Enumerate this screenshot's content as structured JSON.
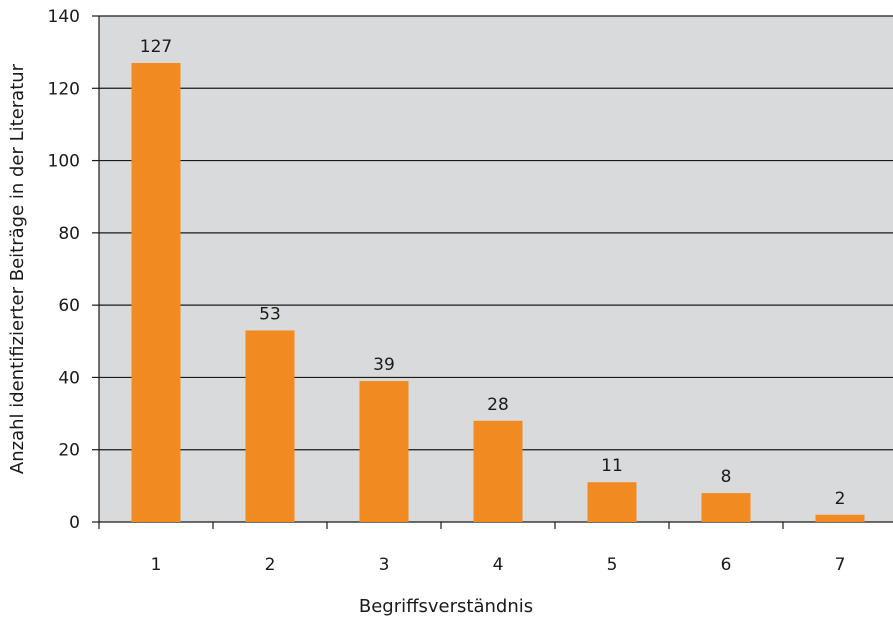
{
  "chart_data": {
    "type": "bar",
    "categories": [
      "1",
      "2",
      "3",
      "4",
      "5",
      "6",
      "7"
    ],
    "values": [
      127,
      53,
      39,
      28,
      11,
      8,
      2
    ],
    "data_labels": [
      "127",
      "53",
      "39",
      "28",
      "11",
      "8",
      "2"
    ],
    "title": "",
    "xlabel": "Begriffsverständnis",
    "ylabel": "Anzahl identifizierter Beiträge in der Literatur",
    "ylim": [
      0,
      140
    ],
    "yticks": [
      0,
      20,
      40,
      60,
      80,
      100,
      120,
      140
    ],
    "grid": true,
    "legend": "none",
    "colors": {
      "bar": "#f28a22",
      "plot_background": "#d9dadb",
      "gridline": "#1a1a1a",
      "axis": "#1a1a1a"
    }
  }
}
